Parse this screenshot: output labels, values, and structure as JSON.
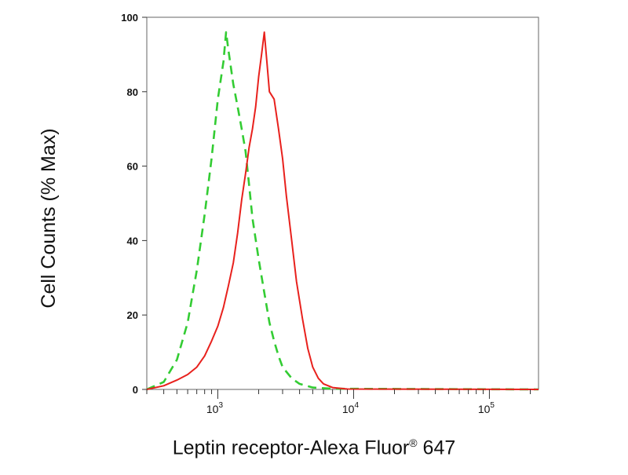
{
  "chart_data": {
    "type": "line",
    "xscale": "log",
    "xlim": [
      300,
      230000
    ],
    "ylim": [
      0,
      100
    ],
    "ylabel": "Cell Counts (% Max)",
    "xlabel": "Leptin receptor-Alexa Fluor",
    "xlabel_sup": "®",
    "xlabel_suffix": " 647",
    "yticks": [
      0,
      20,
      40,
      60,
      80,
      100
    ],
    "ytick_labels": [
      "0",
      "20",
      "40",
      "60",
      "80",
      "100"
    ],
    "xticks": [
      1000,
      10000,
      100000
    ],
    "xtick_labels": [
      {
        "base": "10",
        "exp": "3"
      },
      {
        "base": "10",
        "exp": "4"
      },
      {
        "base": "10",
        "exp": "5"
      }
    ],
    "series": [
      {
        "color": "#33cc33",
        "style": "dashed",
        "points": [
          [
            300,
            0
          ],
          [
            400,
            2
          ],
          [
            500,
            8
          ],
          [
            600,
            18
          ],
          [
            700,
            32
          ],
          [
            800,
            47
          ],
          [
            900,
            62
          ],
          [
            1000,
            78
          ],
          [
            1100,
            88
          ],
          [
            1150,
            96
          ],
          [
            1200,
            91
          ],
          [
            1300,
            82
          ],
          [
            1400,
            76
          ],
          [
            1500,
            70
          ],
          [
            1600,
            64
          ],
          [
            1700,
            55
          ],
          [
            1800,
            46
          ],
          [
            2000,
            35
          ],
          [
            2200,
            26
          ],
          [
            2400,
            18
          ],
          [
            2600,
            13
          ],
          [
            2800,
            9
          ],
          [
            3000,
            6
          ],
          [
            3500,
            3
          ],
          [
            4000,
            1.5
          ],
          [
            5000,
            0.5
          ],
          [
            7000,
            0.2
          ],
          [
            230000,
            0
          ]
        ]
      },
      {
        "color": "#e8211d",
        "style": "solid",
        "points": [
          [
            300,
            0
          ],
          [
            400,
            1
          ],
          [
            500,
            2.5
          ],
          [
            600,
            4
          ],
          [
            700,
            6
          ],
          [
            800,
            9
          ],
          [
            900,
            13
          ],
          [
            1000,
            17
          ],
          [
            1100,
            22
          ],
          [
            1200,
            28
          ],
          [
            1300,
            34
          ],
          [
            1400,
            42
          ],
          [
            1500,
            51
          ],
          [
            1600,
            58
          ],
          [
            1700,
            65
          ],
          [
            1800,
            70
          ],
          [
            1900,
            76
          ],
          [
            2000,
            84
          ],
          [
            2100,
            90
          ],
          [
            2200,
            96
          ],
          [
            2300,
            88
          ],
          [
            2400,
            80
          ],
          [
            2600,
            78
          ],
          [
            2800,
            70
          ],
          [
            3000,
            62
          ],
          [
            3200,
            52
          ],
          [
            3500,
            40
          ],
          [
            3800,
            29
          ],
          [
            4200,
            19
          ],
          [
            4600,
            11
          ],
          [
            5000,
            6
          ],
          [
            5500,
            3
          ],
          [
            6000,
            1.5
          ],
          [
            7000,
            0.5
          ],
          [
            9000,
            0.1
          ],
          [
            230000,
            0
          ]
        ]
      }
    ]
  }
}
